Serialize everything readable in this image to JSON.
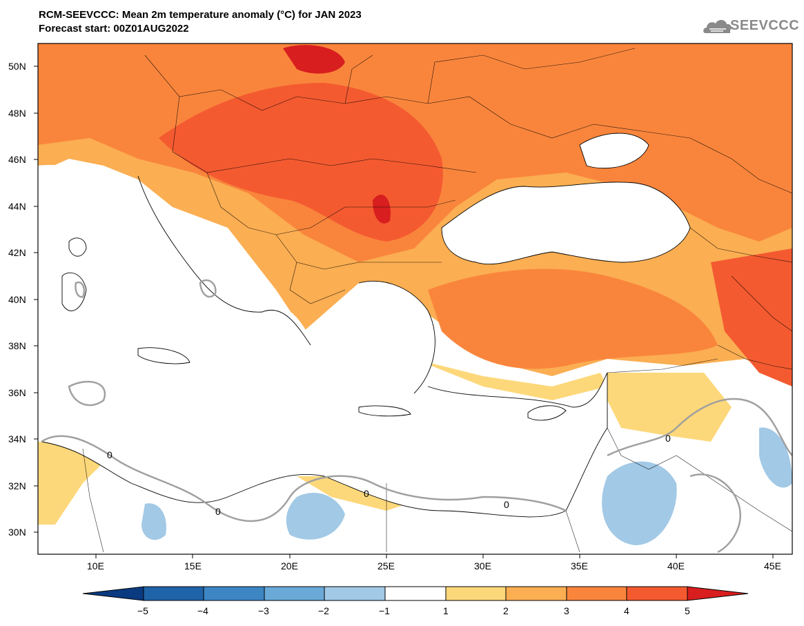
{
  "title": {
    "line1": "RCM-SEEVCCC: Mean 2m temperature anomaly (°C) for JAN 2023",
    "line2": "Forecast start: 00Z01AUG2022"
  },
  "logo": {
    "text": "SEEVCCC",
    "icon": "cloud-icon"
  },
  "axes": {
    "lat_labels": [
      "50N",
      "48N",
      "46N",
      "44N",
      "42N",
      "40N",
      "38N",
      "36N",
      "34N",
      "32N",
      "30N"
    ],
    "lon_labels": [
      "10E",
      "15E",
      "20E",
      "25E",
      "30E",
      "35E",
      "40E",
      "45E"
    ]
  },
  "colorbar": {
    "labels": [
      "−5",
      "−4",
      "−3",
      "−2",
      "−1",
      "1",
      "2",
      "3",
      "4",
      "5"
    ],
    "colors": [
      "#0a3a80",
      "#1f63a8",
      "#3d86c4",
      "#6aa9d8",
      "#a2c9e6",
      "#ffffff",
      "#fdd87a",
      "#fbae52",
      "#f9853c",
      "#f45a30",
      "#d81e1e"
    ],
    "units": "°C"
  },
  "contour_labels": [
    "0",
    "0",
    "0",
    "0",
    "0"
  ],
  "palette": {
    "land_bg": "#ffffff",
    "sea": "#ffffff",
    "border": "#000000",
    "zero_contour": "#a0a0a0"
  }
}
